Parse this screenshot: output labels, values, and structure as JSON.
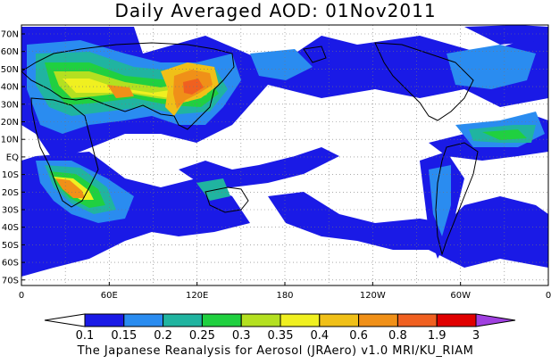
{
  "map": {
    "title": "Daily Averaged AOD: 01Nov2011",
    "credit": "The Japanese Reanalysis for Aerosol (JRAero) v1.0 MRI/KU_RIAM",
    "lat_labels": [
      "70N",
      "60N",
      "50N",
      "40N",
      "30N",
      "20N",
      "10N",
      "EQ",
      "10S",
      "20S",
      "30S",
      "40S",
      "50S",
      "60S",
      "70S"
    ],
    "lon_labels": [
      "0",
      "60E",
      "120E",
      "180",
      "120W",
      "60W",
      "0"
    ],
    "colorbar": {
      "levels": [
        "0.1",
        "0.15",
        "0.2",
        "0.25",
        "0.3",
        "0.35",
        "0.4",
        "0.6",
        "0.8",
        "1.9",
        "3"
      ],
      "colors": [
        "#ffffff",
        "#1a1ae6",
        "#2a8cf0",
        "#20b4a0",
        "#20d040",
        "#b4e020",
        "#f0f020",
        "#f0c018",
        "#f09018",
        "#f06020",
        "#e00000",
        "#a040e0"
      ]
    }
  }
}
